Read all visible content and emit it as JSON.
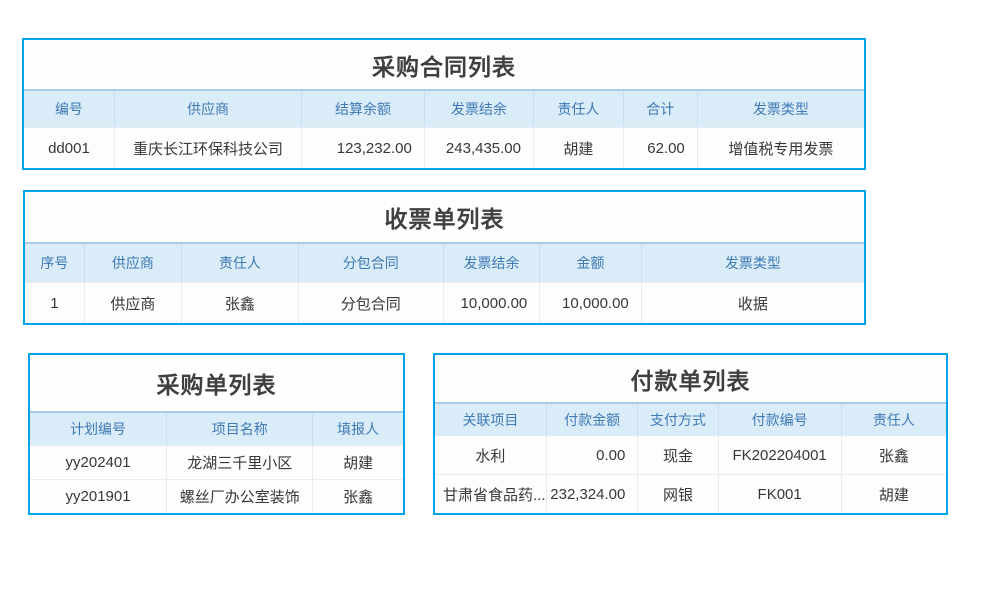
{
  "colors": {
    "table_border": "#00a2e8",
    "header_bg": "#dbecf9",
    "header_top_line": "#a9cde8",
    "header_text": "#3e79b4",
    "title_text": "#3f3f3f",
    "cell_text": "#383838"
  },
  "tables": {
    "purchase_contract": {
      "title": "采购合同列表",
      "columns": [
        "编号",
        "供应商",
        "结算余额",
        "发票结余",
        "责任人",
        "合计",
        "发票类型"
      ],
      "rows": [
        [
          "dd001",
          "重庆长江环保科技公司",
          "123,232.00",
          "243,435.00",
          "胡建",
          "62.00",
          "增值税专用发票"
        ]
      ]
    },
    "receipt": {
      "title": "收票单列表",
      "columns": [
        "序号",
        "供应商",
        "责任人",
        "分包合同",
        "发票结余",
        "金额",
        "发票类型"
      ],
      "rows": [
        [
          "1",
          "供应商",
          "张鑫",
          "分包合同",
          "10,000.00",
          "10,000.00",
          "收据"
        ]
      ]
    },
    "purchase_order": {
      "title": "采购单列表",
      "columns": [
        "计划编号",
        "项目名称",
        "填报人"
      ],
      "rows": [
        [
          "yy202401",
          "龙湖三千里小区",
          "胡建"
        ],
        [
          "yy201901",
          "螺丝厂办公室装饰",
          "张鑫"
        ]
      ]
    },
    "payment": {
      "title": "付款单列表",
      "columns": [
        "关联项目",
        "付款金额",
        "支付方式",
        "付款编号",
        "责任人"
      ],
      "rows": [
        [
          "水利",
          "0.00",
          "现金",
          "FK202204001",
          "张鑫"
        ],
        [
          "甘肃省食品药...",
          "232,324.00",
          "网银",
          "FK001",
          "胡建"
        ]
      ]
    }
  }
}
